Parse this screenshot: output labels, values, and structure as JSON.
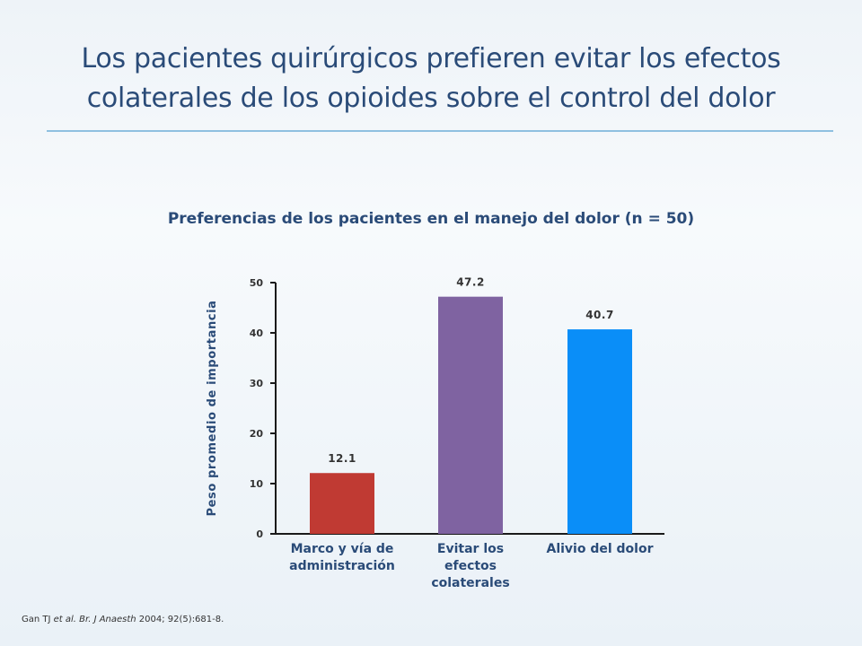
{
  "slide": {
    "title_line1": "Los pacientes quirúrgicos prefieren evitar los efectos",
    "title_line2": "colaterales de los opioides sobre el control del dolor"
  },
  "chart_data": {
    "type": "bar",
    "title": "Preferencias de los pacientes en el manejo del dolor (n = 50)",
    "ylabel": "Peso promedio de importancia",
    "xlabel": "",
    "ylim": [
      0,
      50
    ],
    "yticks": [
      0,
      10,
      20,
      30,
      40,
      50
    ],
    "grid": false,
    "categories": [
      [
        "Marco y vía de",
        "administración"
      ],
      [
        "Evitar los",
        "efectos",
        "colaterales"
      ],
      [
        "Alivio del dolor"
      ]
    ],
    "values": [
      12.1,
      47.2,
      40.7
    ],
    "value_labels": [
      "12.1",
      "47.2",
      "40.7"
    ],
    "colors": [
      "#c03a33",
      "#7f63a1",
      "#0a8ef8"
    ]
  },
  "citation": {
    "authors": "Gan TJ ",
    "etal": "et al. Br. J Anaesth",
    "rest": " 2004; 92(5):681-8."
  }
}
